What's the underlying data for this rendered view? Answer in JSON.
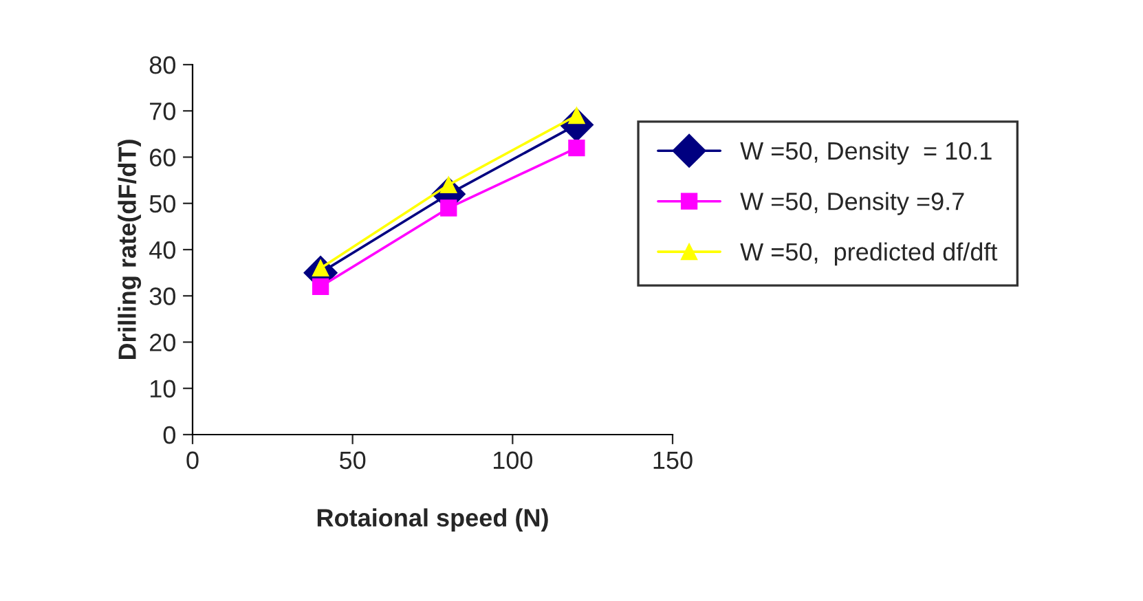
{
  "chart_data": {
    "type": "line",
    "xlabel": "Rotaional speed (N)",
    "ylabel": "Drilling rate(dF/dT)",
    "x": [
      40,
      80,
      120
    ],
    "series": [
      {
        "name": "W =50, Density  = 10.1",
        "color": "#000080",
        "marker": "diamond",
        "values": [
          35,
          52,
          67
        ]
      },
      {
        "name": "W =50, Density =9.7",
        "color": "#ff00ff",
        "marker": "square",
        "values": [
          32,
          49,
          62
        ]
      },
      {
        "name": "W =50,  predicted df/dft",
        "color": "#ffff00",
        "marker": "triangle",
        "values": [
          36,
          54,
          69
        ]
      }
    ],
    "xlim": [
      0,
      150
    ],
    "xticks": [
      0,
      50,
      100,
      150
    ],
    "ylim": [
      0,
      80
    ],
    "yticks": [
      0,
      10,
      20,
      30,
      40,
      50,
      60,
      70,
      80
    ],
    "grid": false,
    "legend": "right",
    "line_style": "solid"
  }
}
